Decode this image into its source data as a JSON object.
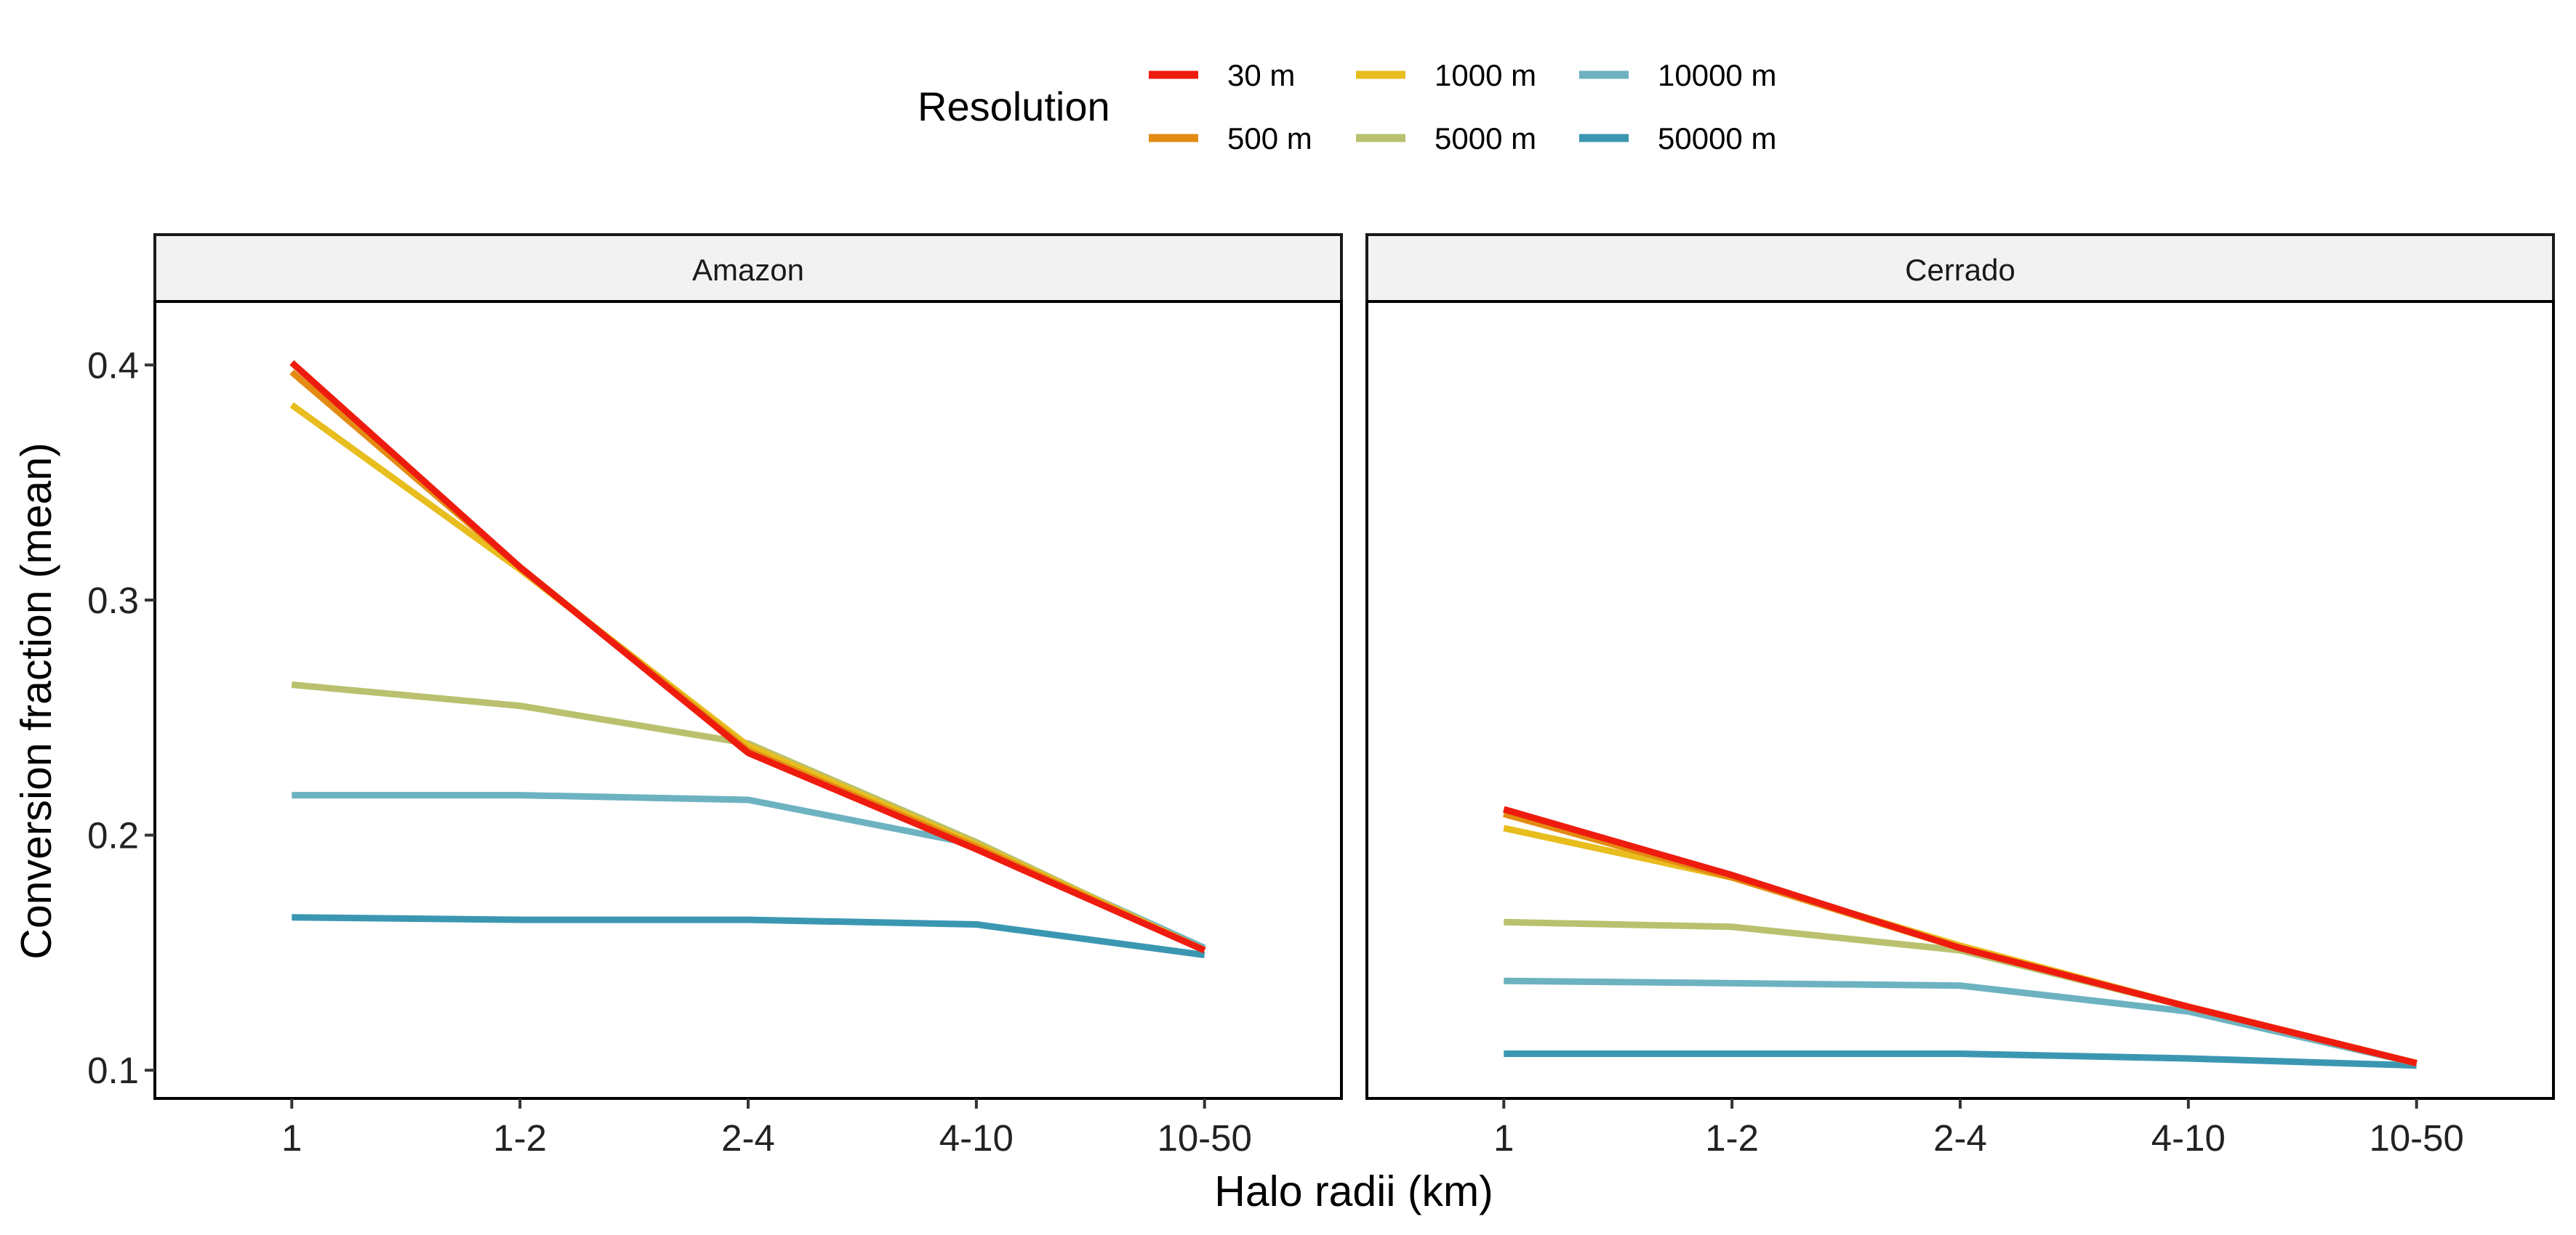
{
  "chart_data": {
    "type": "line",
    "xlabel": "Halo radii (km)",
    "ylabel": "Conversion fraction (mean)",
    "categories": [
      "1",
      "1-2",
      "2-4",
      "4-10",
      "10-50"
    ],
    "ylim": [
      0.088,
      0.427
    ],
    "yticks": [
      0.1,
      0.2,
      0.3,
      0.4
    ],
    "ytick_labels": [
      "0.1",
      "0.2",
      "0.3",
      "0.4"
    ],
    "grid": false,
    "legend": {
      "title": "Resolution",
      "placement": "top",
      "columns": [
        [
          "30 m",
          "500 m"
        ],
        [
          "1000 m",
          "5000 m"
        ],
        [
          "10000 m",
          "50000 m"
        ]
      ]
    },
    "series_styles": [
      {
        "name": "30 m",
        "color": "#ee1c0e"
      },
      {
        "name": "500 m",
        "color": "#e38b12"
      },
      {
        "name": "1000 m",
        "color": "#e8bd1e"
      },
      {
        "name": "5000 m",
        "color": "#b9c16e"
      },
      {
        "name": "10000 m",
        "color": "#6db2c1"
      },
      {
        "name": "50000 m",
        "color": "#3b97b1"
      }
    ],
    "panels": [
      {
        "title": "Amazon",
        "series": [
          {
            "name": "30 m",
            "values": [
              0.401,
              0.314,
              0.235,
              0.194,
              0.151
            ]
          },
          {
            "name": "500 m",
            "values": [
              0.397,
              0.314,
              0.236,
              0.195,
              0.151
            ]
          },
          {
            "name": "1000 m",
            "values": [
              0.383,
              0.313,
              0.238,
              0.196,
              0.151
            ]
          },
          {
            "name": "5000 m",
            "values": [
              0.264,
              0.255,
              0.239,
              0.197,
              0.151
            ]
          },
          {
            "name": "10000 m",
            "values": [
              0.217,
              0.217,
              0.215,
              0.196,
              0.152
            ]
          },
          {
            "name": "50000 m",
            "values": [
              0.165,
              0.164,
              0.164,
              0.162,
              0.149
            ]
          }
        ]
      },
      {
        "title": "Cerrado",
        "series": [
          {
            "name": "30 m",
            "values": [
              0.211,
              0.183,
              0.152,
              0.127,
              0.103
            ]
          },
          {
            "name": "500 m",
            "values": [
              0.209,
              0.182,
              0.152,
              0.127,
              0.103
            ]
          },
          {
            "name": "1000 m",
            "values": [
              0.203,
              0.182,
              0.153,
              0.127,
              0.103
            ]
          },
          {
            "name": "5000 m",
            "values": [
              0.163,
              0.161,
              0.151,
              0.127,
              0.103
            ]
          },
          {
            "name": "10000 m",
            "values": [
              0.138,
              0.137,
              0.136,
              0.125,
              0.103
            ]
          },
          {
            "name": "50000 m",
            "values": [
              0.107,
              0.107,
              0.107,
              0.105,
              0.102
            ]
          }
        ]
      }
    ]
  }
}
